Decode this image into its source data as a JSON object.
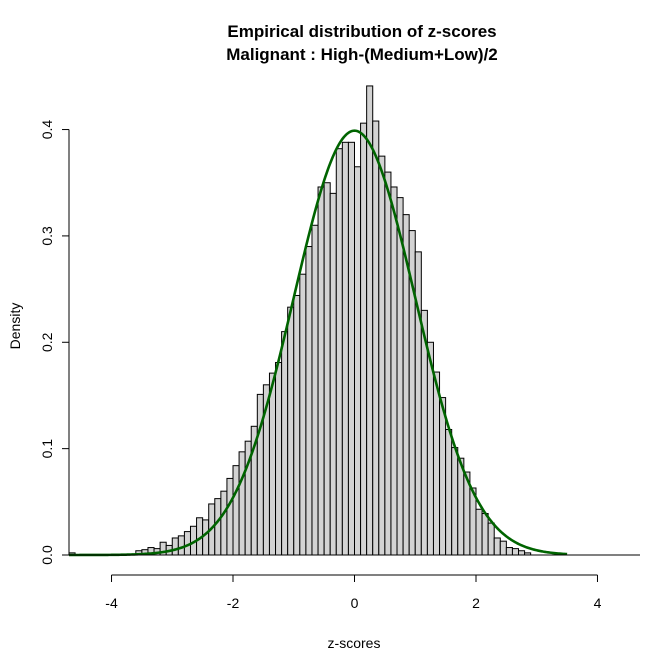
{
  "chart_data": {
    "type": "bar",
    "title": "Empirical distribution of z-scores",
    "subtitle": "Malignant : High-(Medium+Low)/2",
    "xlabel": "z-scores",
    "ylabel": "Density",
    "xlim": [
      -4.7,
      4.7
    ],
    "ylim": [
      0,
      0.44
    ],
    "x_ticks": [
      -4,
      -2,
      0,
      2,
      4
    ],
    "x_tick_labels": [
      "-4",
      "-2",
      "0",
      "2",
      "4"
    ],
    "y_ticks": [
      0.0,
      0.1,
      0.2,
      0.3,
      0.4
    ],
    "y_tick_labels": [
      "0.0",
      "0.1",
      "0.2",
      "0.3",
      "0.4"
    ],
    "grid": false,
    "legend": "none",
    "histogram": {
      "bin_width": 0.1,
      "bins": [
        {
          "x0": -4.7,
          "density": 0.002
        },
        {
          "x0": -3.6,
          "density": 0.004
        },
        {
          "x0": -3.5,
          "density": 0.005
        },
        {
          "x0": -3.4,
          "density": 0.007
        },
        {
          "x0": -3.3,
          "density": 0.006
        },
        {
          "x0": -3.2,
          "density": 0.012
        },
        {
          "x0": -3.1,
          "density": 0.009
        },
        {
          "x0": -3.0,
          "density": 0.016
        },
        {
          "x0": -2.9,
          "density": 0.018
        },
        {
          "x0": -2.8,
          "density": 0.022
        },
        {
          "x0": -2.7,
          "density": 0.027
        },
        {
          "x0": -2.6,
          "density": 0.035
        },
        {
          "x0": -2.5,
          "density": 0.033
        },
        {
          "x0": -2.4,
          "density": 0.048
        },
        {
          "x0": -2.3,
          "density": 0.053
        },
        {
          "x0": -2.2,
          "density": 0.06
        },
        {
          "x0": -2.1,
          "density": 0.072
        },
        {
          "x0": -2.0,
          "density": 0.084
        },
        {
          "x0": -1.9,
          "density": 0.097
        },
        {
          "x0": -1.8,
          "density": 0.107
        },
        {
          "x0": -1.7,
          "density": 0.121
        },
        {
          "x0": -1.6,
          "density": 0.151
        },
        {
          "x0": -1.5,
          "density": 0.16
        },
        {
          "x0": -1.4,
          "density": 0.171
        },
        {
          "x0": -1.3,
          "density": 0.181
        },
        {
          "x0": -1.2,
          "density": 0.21
        },
        {
          "x0": -1.1,
          "density": 0.233
        },
        {
          "x0": -1.0,
          "density": 0.244
        },
        {
          "x0": -0.9,
          "density": 0.264
        },
        {
          "x0": -0.8,
          "density": 0.29
        },
        {
          "x0": -0.7,
          "density": 0.31
        },
        {
          "x0": -0.6,
          "density": 0.346
        },
        {
          "x0": -0.5,
          "density": 0.35
        },
        {
          "x0": -0.4,
          "density": 0.34
        },
        {
          "x0": -0.3,
          "density": 0.382
        },
        {
          "x0": -0.2,
          "density": 0.388
        },
        {
          "x0": -0.1,
          "density": 0.388
        },
        {
          "x0": 0.0,
          "density": 0.365
        },
        {
          "x0": 0.1,
          "density": 0.406
        },
        {
          "x0": 0.2,
          "density": 0.441
        },
        {
          "x0": 0.3,
          "density": 0.408
        },
        {
          "x0": 0.4,
          "density": 0.375
        },
        {
          "x0": 0.5,
          "density": 0.36
        },
        {
          "x0": 0.6,
          "density": 0.346
        },
        {
          "x0": 0.7,
          "density": 0.336
        },
        {
          "x0": 0.8,
          "density": 0.32
        },
        {
          "x0": 0.9,
          "density": 0.305
        },
        {
          "x0": 1.0,
          "density": 0.285
        },
        {
          "x0": 1.1,
          "density": 0.23
        },
        {
          "x0": 1.2,
          "density": 0.2
        },
        {
          "x0": 1.3,
          "density": 0.172
        },
        {
          "x0": 1.4,
          "density": 0.148
        },
        {
          "x0": 1.5,
          "density": 0.118
        },
        {
          "x0": 1.6,
          "density": 0.101
        },
        {
          "x0": 1.7,
          "density": 0.091
        },
        {
          "x0": 1.8,
          "density": 0.078
        },
        {
          "x0": 1.9,
          "density": 0.063
        },
        {
          "x0": 2.0,
          "density": 0.043
        },
        {
          "x0": 2.1,
          "density": 0.039
        },
        {
          "x0": 2.2,
          "density": 0.03
        },
        {
          "x0": 2.3,
          "density": 0.016
        },
        {
          "x0": 2.4,
          "density": 0.013
        },
        {
          "x0": 2.5,
          "density": 0.007
        },
        {
          "x0": 2.6,
          "density": 0.006
        },
        {
          "x0": 2.7,
          "density": 0.004
        },
        {
          "x0": 2.8,
          "density": 0.002
        }
      ]
    },
    "curve": {
      "type": "normal-density",
      "mean": 0,
      "sd": 1,
      "x_range": [
        -4.7,
        3.5
      ]
    },
    "colors": {
      "bar_fill": "#d3d3d3",
      "bar_stroke": "#000000",
      "curve": "#006400",
      "axis": "#000000"
    }
  }
}
